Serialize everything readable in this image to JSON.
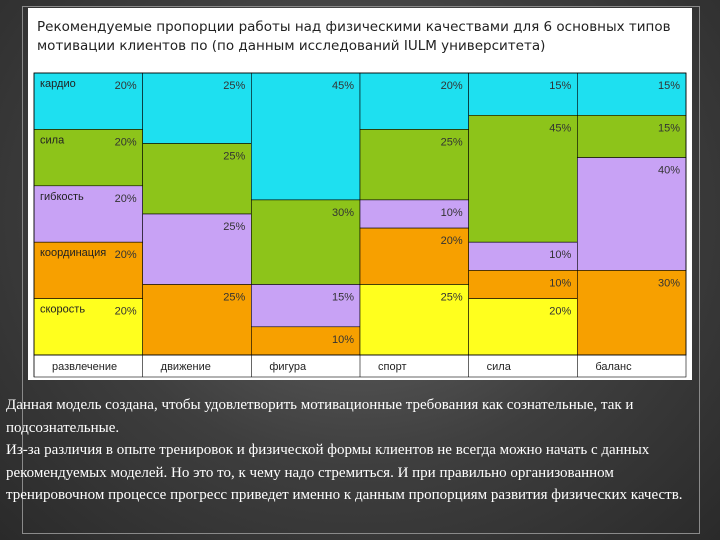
{
  "chart_data": {
    "type": "bar",
    "title": "Рекомендуемые пропорции работы над физическими качествами для  6 основных типов мотивации клиентов по (по данным исследований IULM университета)",
    "categories": [
      "развлечение",
      "движение",
      "фигура",
      "спорт",
      "сила",
      "баланс"
    ],
    "series": [
      {
        "name": "кардио",
        "color": "#1ee0f0",
        "values": [
          20,
          25,
          45,
          20,
          15,
          15
        ]
      },
      {
        "name": "сила",
        "color": "#8dc41a",
        "values": [
          20,
          25,
          30,
          25,
          45,
          15
        ]
      },
      {
        "name": "гибкость",
        "color": "#c8a2f5",
        "values": [
          20,
          25,
          15,
          10,
          10,
          40
        ]
      },
      {
        "name": "координация",
        "color": "#f7a000",
        "values": [
          20,
          25,
          10,
          20,
          10,
          30
        ]
      },
      {
        "name": "скорость",
        "color": "#ffff1e",
        "values": [
          20,
          0,
          0,
          25,
          20,
          0
        ]
      }
    ],
    "value_labels": [
      [
        "20%",
        "25%",
        "45%",
        "20%",
        "15%",
        "15%"
      ],
      [
        "20%",
        "25%",
        "30%",
        "25%",
        "45%",
        "15%"
      ],
      [
        "20%",
        "25%",
        "15%",
        "10%",
        "10%",
        "40%"
      ],
      [
        "20%",
        "25%",
        "10%",
        "20%",
        "10%",
        "30%"
      ],
      [
        "20%",
        "",
        "",
        "25%",
        "20%",
        ""
      ]
    ],
    "stacked": true,
    "ylim": [
      0,
      100
    ],
    "legend": "left-inside"
  },
  "caption": {
    "lines": [
      "Данная модель создана, чтобы удовлетворить мотивационные требования как сознательные, так и подсознательные.",
      "Из-за различия в опыте тренировок и физической формы клиентов не всегда можно начать с данных рекомендуемых моделей. Но это то, к чему надо стремиться. И при правильно организованном тренировочном процессе прогресс приведет именно к данным пропорциям развития физических качеств."
    ]
  }
}
